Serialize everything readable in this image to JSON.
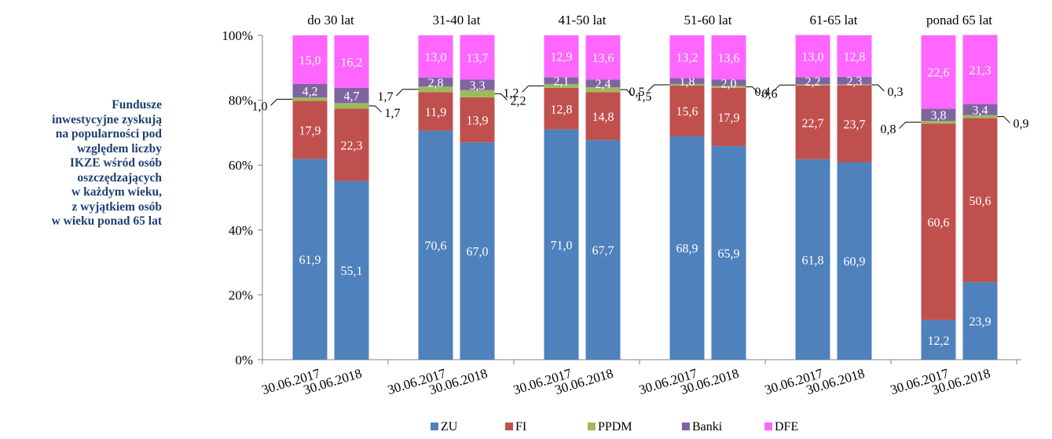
{
  "side_note": {
    "lines": [
      "Fundusze",
      "inwestycyjne zyskują",
      "na popularności pod",
      "względem liczby",
      "IKZE wśród osób",
      "oszczędzających",
      "w każdym wieku,",
      "z wyjątkiem osób",
      "w wieku ponad 65 lat"
    ]
  },
  "chart_data": {
    "type": "bar",
    "stacked": true,
    "percent_axis": true,
    "title": "",
    "xlabel": "",
    "ylabel": "",
    "ylim": [
      0,
      100
    ],
    "yticks": [
      "0%",
      "20%",
      "40%",
      "60%",
      "80%",
      "100%"
    ],
    "grid": false,
    "legend_position": "bottom",
    "groups": [
      "do 30 lat",
      "31-40 lat",
      "41-50 lat",
      "51-60 lat",
      "61-65 lat",
      "ponad 65 lat"
    ],
    "categories": [
      "30.06.2017",
      "30.06.2018"
    ],
    "series": [
      {
        "name": "ZU",
        "color": "#4f81bd",
        "values": [
          [
            61.9,
            55.1
          ],
          [
            70.6,
            67.0
          ],
          [
            71.0,
            67.7
          ],
          [
            68.9,
            65.9
          ],
          [
            61.8,
            60.9
          ],
          [
            12.2,
            23.9
          ]
        ],
        "labels": [
          [
            "61,9",
            "55,1"
          ],
          [
            "70,6",
            "67,0"
          ],
          [
            "71,0",
            "67,7"
          ],
          [
            "68,9",
            "65,9"
          ],
          [
            "61,8",
            "60,9"
          ],
          [
            "12,2",
            "23,9"
          ]
        ]
      },
      {
        "name": "FI",
        "color": "#c0504d",
        "values": [
          [
            17.9,
            22.3
          ],
          [
            11.9,
            13.9
          ],
          [
            12.8,
            14.8
          ],
          [
            15.6,
            17.9
          ],
          [
            22.7,
            23.7
          ],
          [
            60.6,
            50.6
          ]
        ],
        "labels": [
          [
            "17,9",
            "22,3"
          ],
          [
            "11,9",
            "13,9"
          ],
          [
            "12,8",
            "14,8"
          ],
          [
            "15,6",
            "17,9"
          ],
          [
            "22,7",
            "23,7"
          ],
          [
            "60,6",
            "50,6"
          ]
        ]
      },
      {
        "name": "PPDM",
        "color": "#9bbb59",
        "values": [
          [
            1.0,
            1.7
          ],
          [
            1.7,
            2.2
          ],
          [
            1.2,
            1.5
          ],
          [
            0.5,
            0.6
          ],
          [
            0.4,
            0.3
          ],
          [
            0.8,
            0.9
          ]
        ],
        "labels": [
          [
            "1,0",
            "1,7"
          ],
          [
            "1,7",
            "2,2"
          ],
          [
            "1,2",
            "1,5"
          ],
          [
            "0,5",
            "0,6"
          ],
          [
            "0,4",
            "0,3"
          ],
          [
            "0,8",
            "0,9"
          ]
        ]
      },
      {
        "name": "Banki",
        "color": "#8064a2",
        "values": [
          [
            4.2,
            4.7
          ],
          [
            2.8,
            3.3
          ],
          [
            2.1,
            2.4
          ],
          [
            1.8,
            2.0
          ],
          [
            2.2,
            2.3
          ],
          [
            3.8,
            3.4
          ]
        ],
        "labels": [
          [
            "4,2",
            "4,7"
          ],
          [
            "2,8",
            "3,3"
          ],
          [
            "2,1",
            "2,4"
          ],
          [
            "1,8",
            "2,0"
          ],
          [
            "2,2",
            "2,3"
          ],
          [
            "3,8",
            "3,4"
          ]
        ]
      },
      {
        "name": "DFE",
        "color": "#ff66ff",
        "values": [
          [
            15.0,
            16.2
          ],
          [
            13.0,
            13.7
          ],
          [
            12.9,
            13.6
          ],
          [
            13.2,
            13.6
          ],
          [
            13.0,
            12.8
          ],
          [
            22.6,
            21.3
          ]
        ],
        "labels": [
          [
            "15,0",
            "16,2"
          ],
          [
            "13,0",
            "13,7"
          ],
          [
            "12,9",
            "13,6"
          ],
          [
            "13,2",
            "13,6"
          ],
          [
            "13,0",
            "12,8"
          ],
          [
            "22,6",
            "21,3"
          ]
        ]
      }
    ]
  }
}
